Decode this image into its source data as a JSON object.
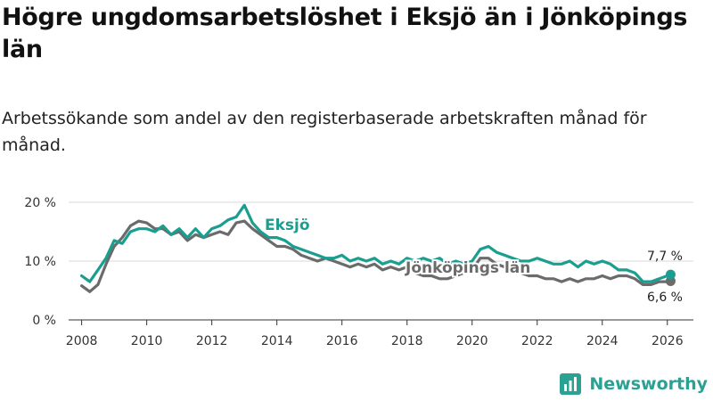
{
  "page": {
    "title": "Högre ungdomsarbetslöshet i Eksjö än i Jönköpings län",
    "subtitle": "Arbetssökande som andel av den registerbaserade arbetskraften månad för månad.",
    "brand": "Newsworthy"
  },
  "colors": {
    "eksjo": "#1a9e8f",
    "lan": "#6b6b6b",
    "grid": "#d9d9d9",
    "axis": "#333333",
    "brand": "#2aa193"
  },
  "chart_data": {
    "type": "line",
    "title": "Högre ungdomsarbetslöshet i Eksjö än i Jönköpings län",
    "xlabel": "",
    "ylabel": "",
    "xlim": [
      2007.6,
      2026.8
    ],
    "ylim": [
      0,
      20
    ],
    "x_ticks": [
      2008,
      2010,
      2012,
      2014,
      2016,
      2018,
      2020,
      2022,
      2024,
      2026
    ],
    "x_tick_labels": [
      "2008",
      "2010",
      "2012",
      "2014",
      "2016",
      "2018",
      "2020",
      "2022",
      "2024",
      "2026"
    ],
    "y_ticks": [
      0,
      10,
      20
    ],
    "y_tick_labels": [
      "0 %",
      "10 %",
      "20 %"
    ],
    "grid": true,
    "series": [
      {
        "name": "Eksjö",
        "key": "eksjo",
        "end_label": "7,7 %",
        "x": [
          2008.0,
          2008.25,
          2008.5,
          2008.75,
          2009.0,
          2009.25,
          2009.5,
          2009.75,
          2010.0,
          2010.25,
          2010.5,
          2010.75,
          2011.0,
          2011.25,
          2011.5,
          2011.75,
          2012.0,
          2012.25,
          2012.5,
          2012.75,
          2013.0,
          2013.25,
          2013.5,
          2013.75,
          2014.0,
          2014.25,
          2014.5,
          2014.75,
          2015.0,
          2015.25,
          2015.5,
          2015.75,
          2016.0,
          2016.25,
          2016.5,
          2016.75,
          2017.0,
          2017.25,
          2017.5,
          2017.75,
          2018.0,
          2018.25,
          2018.5,
          2018.75,
          2019.0,
          2019.25,
          2019.5,
          2019.75,
          2020.0,
          2020.25,
          2020.5,
          2020.75,
          2021.0,
          2021.25,
          2021.5,
          2021.75,
          2022.0,
          2022.25,
          2022.5,
          2022.75,
          2023.0,
          2023.25,
          2023.5,
          2023.75,
          2024.0,
          2024.25,
          2024.5,
          2024.75,
          2025.0,
          2025.25,
          2025.5,
          2025.75,
          2026.0,
          2026.1
        ],
        "values": [
          7.5,
          6.5,
          8.5,
          10.5,
          13.5,
          13.0,
          15.0,
          15.5,
          15.5,
          15.0,
          16.0,
          14.5,
          15.5,
          14.0,
          15.5,
          14.0,
          15.5,
          16.0,
          17.0,
          17.5,
          19.5,
          16.5,
          15.0,
          14.0,
          14.0,
          13.5,
          12.5,
          12.0,
          11.5,
          11.0,
          10.5,
          10.5,
          11.0,
          10.0,
          10.5,
          10.0,
          10.5,
          9.5,
          10.0,
          9.5,
          10.5,
          10.0,
          10.5,
          10.0,
          10.5,
          9.5,
          10.0,
          9.5,
          10.0,
          12.0,
          12.5,
          11.5,
          11.0,
          10.5,
          10.0,
          10.0,
          10.5,
          10.0,
          9.5,
          9.5,
          10.0,
          9.0,
          10.0,
          9.5,
          10.0,
          9.5,
          8.5,
          8.5,
          8.0,
          6.5,
          6.5,
          7.0,
          7.5,
          7.7
        ]
      },
      {
        "name": "Jönköpings län",
        "key": "lan",
        "end_label": "6,6 %",
        "x": [
          2008.0,
          2008.25,
          2008.5,
          2008.75,
          2009.0,
          2009.25,
          2009.5,
          2009.75,
          2010.0,
          2010.25,
          2010.5,
          2010.75,
          2011.0,
          2011.25,
          2011.5,
          2011.75,
          2012.0,
          2012.25,
          2012.5,
          2012.75,
          2013.0,
          2013.25,
          2013.5,
          2013.75,
          2014.0,
          2014.25,
          2014.5,
          2014.75,
          2015.0,
          2015.25,
          2015.5,
          2015.75,
          2016.0,
          2016.25,
          2016.5,
          2016.75,
          2017.0,
          2017.25,
          2017.5,
          2017.75,
          2018.0,
          2018.25,
          2018.5,
          2018.75,
          2019.0,
          2019.25,
          2019.5,
          2019.75,
          2020.0,
          2020.25,
          2020.5,
          2020.75,
          2021.0,
          2021.25,
          2021.5,
          2021.75,
          2022.0,
          2022.25,
          2022.5,
          2022.75,
          2023.0,
          2023.25,
          2023.5,
          2023.75,
          2024.0,
          2024.25,
          2024.5,
          2024.75,
          2025.0,
          2025.25,
          2025.5,
          2025.75,
          2026.0,
          2026.1
        ],
        "values": [
          5.8,
          4.8,
          6.0,
          9.5,
          12.5,
          14.0,
          16.0,
          16.8,
          16.5,
          15.5,
          15.5,
          14.5,
          15.0,
          13.5,
          14.5,
          14.0,
          14.5,
          15.0,
          14.5,
          16.5,
          16.8,
          15.5,
          14.5,
          13.5,
          12.5,
          12.5,
          12.0,
          11.0,
          10.5,
          10.0,
          10.5,
          10.0,
          9.5,
          9.0,
          9.5,
          9.0,
          9.5,
          8.5,
          9.0,
          8.5,
          9.0,
          8.0,
          7.5,
          7.5,
          7.0,
          7.0,
          7.5,
          8.0,
          8.5,
          10.5,
          10.5,
          9.5,
          9.0,
          8.5,
          8.0,
          7.5,
          7.5,
          7.0,
          7.0,
          6.5,
          7.0,
          6.5,
          7.0,
          7.0,
          7.5,
          7.0,
          7.5,
          7.5,
          7.0,
          6.0,
          6.0,
          6.5,
          6.5,
          6.6
        ]
      }
    ]
  }
}
